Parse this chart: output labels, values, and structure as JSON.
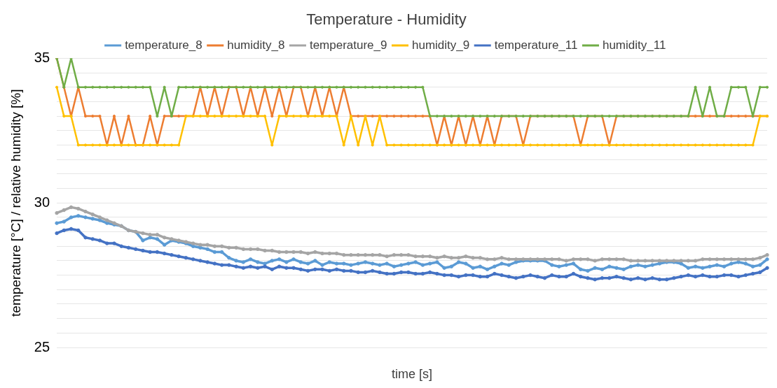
{
  "chart_data": {
    "type": "line",
    "title": "Temperature - Humidity",
    "xlabel": "time [s]",
    "ylabel": "temperature [°C] / relative humidity [%]",
    "categories": [
      null,
      null,
      null,
      null,
      null,
      null,
      null,
      null,
      null,
      null,
      null,
      null,
      null,
      null,
      null,
      null,
      null,
      null,
      null,
      null,
      null,
      null,
      null,
      null,
      null,
      null,
      null,
      null,
      null,
      null,
      null,
      null,
      null,
      null,
      null,
      null,
      null,
      null,
      null,
      null,
      null,
      null,
      null,
      null,
      null,
      null,
      null,
      null,
      null,
      null,
      null,
      null,
      null,
      null,
      null,
      null,
      null,
      null,
      null,
      null,
      null,
      null,
      null,
      null,
      null,
      null,
      null,
      null,
      null,
      null,
      null,
      null,
      null,
      null,
      null,
      null,
      null,
      null,
      null,
      null,
      null,
      null,
      null,
      null,
      null,
      null,
      null,
      null,
      null,
      null,
      null,
      null,
      null,
      null,
      null,
      null,
      null,
      null,
      null,
      null
    ],
    "ylim": [
      25,
      35
    ],
    "yticks": [
      25,
      {
        "value": 25.5,
        "label": null
      },
      {
        "value": 26,
        "label": null
      },
      {
        "value": 26.5,
        "label": null
      },
      {
        "value": 27,
        "label": null
      },
      {
        "value": 27.5,
        "label": null
      },
      {
        "value": 28,
        "label": null
      },
      {
        "value": 28.5,
        "label": null
      },
      {
        "value": 29,
        "label": null
      },
      {
        "value": 29.5,
        "label": null
      },
      30,
      {
        "value": 30.5,
        "label": null
      },
      {
        "value": 31,
        "label": null
      },
      {
        "value": 31.5,
        "label": null
      },
      {
        "value": 32,
        "label": null
      },
      {
        "value": 32.5,
        "label": null
      },
      {
        "value": 33,
        "label": null
      },
      {
        "value": 33.5,
        "label": null
      },
      {
        "value": 34,
        "label": null
      },
      {
        "value": 34.5,
        "label": null
      },
      35
    ],
    "grid": "y",
    "legend": "top",
    "marker": "circle",
    "line_style": "solid",
    "series": [
      {
        "name": "temperature_8",
        "color": "#5b9bd5",
        "values": [
          29.3,
          29.35,
          29.5,
          29.55,
          29.5,
          29.45,
          29.4,
          29.3,
          29.25,
          29.2,
          29.05,
          29.0,
          28.7,
          28.8,
          28.75,
          28.55,
          28.7,
          28.65,
          28.6,
          28.5,
          28.45,
          28.4,
          28.3,
          28.3,
          28.1,
          28.0,
          27.95,
          28.05,
          27.95,
          27.9,
          28.0,
          28.05,
          27.95,
          28.05,
          27.95,
          27.9,
          28.0,
          27.85,
          27.95,
          27.9,
          27.9,
          27.85,
          27.9,
          27.95,
          27.9,
          27.85,
          27.9,
          27.8,
          27.85,
          27.9,
          27.95,
          27.85,
          27.9,
          27.95,
          27.75,
          27.8,
          27.95,
          27.9,
          27.75,
          27.8,
          27.7,
          27.8,
          27.9,
          27.85,
          27.95,
          28.0,
          28.0,
          28.0,
          28.0,
          27.85,
          27.8,
          27.85,
          27.9,
          27.7,
          27.65,
          27.75,
          27.7,
          27.8,
          27.75,
          27.7,
          27.8,
          27.85,
          27.8,
          27.85,
          27.9,
          27.95,
          27.95,
          27.9,
          27.75,
          27.8,
          27.75,
          27.8,
          27.85,
          27.8,
          27.9,
          27.95,
          27.9,
          27.8,
          27.85,
          28.05
        ]
      },
      {
        "name": "humidity_8",
        "color": "#ed7d31",
        "values": [
          35,
          34,
          33,
          34,
          33,
          33,
          33,
          32,
          33,
          32,
          33,
          32,
          32,
          33,
          32,
          33,
          33,
          33,
          33,
          33,
          34,
          33,
          34,
          33,
          34,
          34,
          33,
          34,
          33,
          34,
          33,
          34,
          33,
          34,
          34,
          33,
          34,
          33,
          34,
          33,
          34,
          33,
          33,
          33,
          33,
          33,
          33,
          33,
          33,
          33,
          33,
          33,
          33,
          32,
          33,
          32,
          33,
          32,
          33,
          32,
          33,
          32,
          33,
          33,
          33,
          32,
          33,
          33,
          33,
          33,
          33,
          33,
          33,
          32,
          33,
          33,
          33,
          32,
          33,
          33,
          33,
          33,
          33,
          33,
          33,
          33,
          33,
          33,
          33,
          33,
          33,
          33,
          33,
          33,
          33,
          33,
          33,
          33,
          33,
          33
        ]
      },
      {
        "name": "temperature_9",
        "color": "#a5a5a5",
        "values": [
          29.65,
          29.75,
          29.85,
          29.8,
          29.7,
          29.6,
          29.5,
          29.4,
          29.3,
          29.2,
          29.05,
          29.0,
          28.95,
          28.9,
          28.9,
          28.8,
          28.75,
          28.7,
          28.65,
          28.6,
          28.55,
          28.55,
          28.5,
          28.5,
          28.45,
          28.45,
          28.4,
          28.4,
          28.4,
          28.35,
          28.35,
          28.3,
          28.3,
          28.3,
          28.3,
          28.25,
          28.3,
          28.25,
          28.25,
          28.25,
          28.2,
          28.2,
          28.2,
          28.2,
          28.2,
          28.2,
          28.15,
          28.2,
          28.2,
          28.2,
          28.15,
          28.15,
          28.15,
          28.1,
          28.15,
          28.1,
          28.1,
          28.15,
          28.1,
          28.1,
          28.05,
          28.05,
          28.1,
          28.05,
          28.05,
          28.05,
          28.05,
          28.05,
          28.05,
          28.05,
          28.05,
          28.0,
          28.05,
          28.05,
          28.05,
          28.0,
          28.05,
          28.05,
          28.05,
          28.05,
          28.0,
          28.0,
          28.0,
          28.0,
          28.0,
          28.0,
          28.0,
          28.0,
          28.0,
          28.0,
          28.05,
          28.05,
          28.05,
          28.05,
          28.05,
          28.05,
          28.05,
          28.05,
          28.1,
          28.2
        ]
      },
      {
        "name": "humidity_9",
        "color": "#ffc000",
        "values": [
          34,
          33,
          33,
          32,
          32,
          32,
          32,
          32,
          32,
          32,
          32,
          32,
          32,
          32,
          32,
          32,
          32,
          32,
          33,
          33,
          33,
          33,
          33,
          33,
          33,
          33,
          33,
          33,
          33,
          33,
          32,
          33,
          33,
          33,
          33,
          33,
          33,
          33,
          33,
          33,
          32,
          33,
          32,
          33,
          32,
          33,
          32,
          32,
          32,
          32,
          32,
          32,
          32,
          32,
          32,
          32,
          32,
          32,
          32,
          32,
          32,
          32,
          32,
          32,
          32,
          32,
          32,
          32,
          32,
          32,
          32,
          32,
          32,
          32,
          32,
          32,
          32,
          32,
          32,
          32,
          32,
          32,
          32,
          32,
          32,
          32,
          32,
          32,
          32,
          32,
          32,
          32,
          32,
          32,
          32,
          32,
          32,
          32,
          33,
          33
        ]
      },
      {
        "name": "temperature_11",
        "color": "#4472c4",
        "values": [
          28.95,
          29.05,
          29.1,
          29.05,
          28.8,
          28.75,
          28.7,
          28.6,
          28.6,
          28.5,
          28.45,
          28.4,
          28.35,
          28.3,
          28.3,
          28.25,
          28.2,
          28.15,
          28.1,
          28.05,
          28.0,
          27.95,
          27.9,
          27.85,
          27.85,
          27.8,
          27.75,
          27.8,
          27.75,
          27.8,
          27.7,
          27.8,
          27.75,
          27.75,
          27.7,
          27.65,
          27.7,
          27.7,
          27.65,
          27.7,
          27.65,
          27.65,
          27.6,
          27.6,
          27.65,
          27.6,
          27.55,
          27.55,
          27.6,
          27.6,
          27.55,
          27.55,
          27.6,
          27.55,
          27.5,
          27.5,
          27.45,
          27.5,
          27.5,
          27.45,
          27.45,
          27.55,
          27.5,
          27.45,
          27.4,
          27.45,
          27.5,
          27.45,
          27.4,
          27.5,
          27.45,
          27.45,
          27.55,
          27.45,
          27.4,
          27.35,
          27.4,
          27.4,
          27.45,
          27.4,
          27.35,
          27.4,
          27.35,
          27.4,
          27.35,
          27.35,
          27.4,
          27.45,
          27.5,
          27.45,
          27.5,
          27.45,
          27.45,
          27.5,
          27.5,
          27.45,
          27.5,
          27.55,
          27.6,
          27.75
        ]
      },
      {
        "name": "humidity_11",
        "color": "#70ad47",
        "values": [
          35,
          34,
          35,
          34,
          34,
          34,
          34,
          34,
          34,
          34,
          34,
          34,
          34,
          34,
          33,
          34,
          33,
          34,
          34,
          34,
          34,
          34,
          34,
          34,
          34,
          34,
          34,
          34,
          34,
          34,
          34,
          34,
          34,
          34,
          34,
          34,
          34,
          34,
          34,
          34,
          34,
          34,
          34,
          34,
          34,
          34,
          34,
          34,
          34,
          34,
          34,
          34,
          33,
          33,
          33,
          33,
          33,
          33,
          33,
          33,
          33,
          33,
          33,
          33,
          33,
          33,
          33,
          33,
          33,
          33,
          33,
          33,
          33,
          33,
          33,
          33,
          33,
          33,
          33,
          33,
          33,
          33,
          33,
          33,
          33,
          33,
          33,
          33,
          33,
          34,
          33,
          34,
          33,
          33,
          34,
          34,
          34,
          33,
          34,
          34
        ]
      }
    ]
  }
}
